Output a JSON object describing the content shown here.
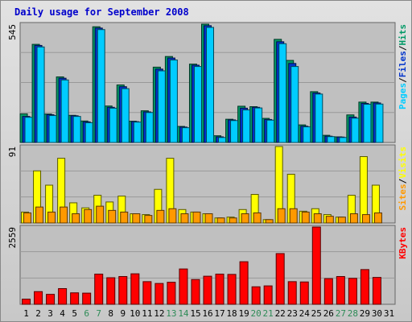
{
  "chart_data": {
    "type": "bar",
    "title": "Daily usage for September 2008",
    "categories": [
      "1",
      "2",
      "3",
      "4",
      "5",
      "6",
      "7",
      "8",
      "9",
      "10",
      "11",
      "12",
      "13",
      "14",
      "15",
      "16",
      "17",
      "18",
      "19",
      "20",
      "21",
      "22",
      "23",
      "24",
      "25",
      "26",
      "27",
      "28",
      "29",
      "30",
      "31"
    ],
    "weekend_days": [
      "6",
      "7",
      "13",
      "14",
      "20",
      "21",
      "27",
      "28"
    ],
    "panels": [
      {
        "id": "pages-files-hits",
        "ymax_label": "545",
        "ymax": 545,
        "axis_label_parts": [
          "Pages",
          "/",
          "Files",
          "/",
          "Hits"
        ],
        "axis_label_colors": [
          "#00ccff",
          "#000000",
          "#0033cc",
          "#000000",
          "#009966"
        ],
        "series": [
          {
            "name": "Hits",
            "color": "#009966",
            "values": [
              132,
              452,
              131,
              302,
              125,
              99,
              533,
              168,
              265,
              98,
              146,
              347,
              396,
              74,
              361,
              545,
              31,
              107,
              167,
              165,
              111,
              475,
              378,
              81,
              234,
              33,
              26,
              127,
              186,
              186,
              0
            ]
          },
          {
            "name": "Files",
            "color": "#0033cc",
            "values": [
              120,
              447,
              128,
              296,
              123,
              95,
              527,
              162,
              257,
              96,
              141,
              338,
              389,
              71,
              356,
              538,
              26,
              104,
              158,
              162,
              106,
              464,
              364,
              75,
              228,
              29,
              25,
              117,
              180,
              182,
              0
            ]
          },
          {
            "name": "Pages",
            "color": "#00ccff",
            "values": [
              116,
              440,
              124,
              288,
              120,
              91,
              520,
              158,
              248,
              94,
              138,
              330,
              380,
              68,
              350,
              530,
              23,
              101,
              150,
              159,
              103,
              455,
              350,
              72,
              223,
              27,
              23,
              112,
              176,
              177,
              0
            ]
          }
        ]
      },
      {
        "id": "visits-sites",
        "ymax_label": "91",
        "ymax": 91,
        "axis_label_parts": [
          "Sites",
          "/",
          "Visits"
        ],
        "axis_label_colors": [
          "#ff9900",
          "#000000",
          "#ffff00"
        ],
        "series": [
          {
            "name": "Visits",
            "color": "#ffff00",
            "values": [
              13,
              62,
              45,
              77,
              24,
              18,
              33,
              25,
              32,
              11,
              10,
              40,
              77,
              16,
              13,
              11,
              6,
              7,
              16,
              34,
              4,
              91,
              58,
              14,
              17,
              10,
              7,
              33,
              79,
              45,
              0
            ]
          },
          {
            "name": "Sites",
            "color": "#ff9900",
            "values": [
              12,
              19,
              13,
              19,
              11,
              16,
              20,
              15,
              13,
              11,
              9,
              15,
              17,
              11,
              13,
              11,
              6,
              6,
              11,
              12,
              4,
              17,
              17,
              13,
              11,
              8,
              7,
              11,
              10,
              12,
              0
            ]
          }
        ]
      },
      {
        "id": "kbytes",
        "ymax_label": "2559",
        "ymax": 2559,
        "axis_label_parts": [
          "KBytes"
        ],
        "axis_label_colors": [
          "#ff0000"
        ],
        "series": [
          {
            "name": "KBytes",
            "color": "#ff0000",
            "values": [
              170,
              420,
              330,
              520,
              380,
              370,
              1000,
              880,
              920,
              1010,
              750,
              690,
              730,
              1170,
              820,
              930,
              1000,
              990,
              1410,
              580,
              610,
              1680,
              750,
              740,
              2559,
              850,
              920,
              860,
              1150,
              890,
              0
            ]
          }
        ]
      }
    ]
  }
}
